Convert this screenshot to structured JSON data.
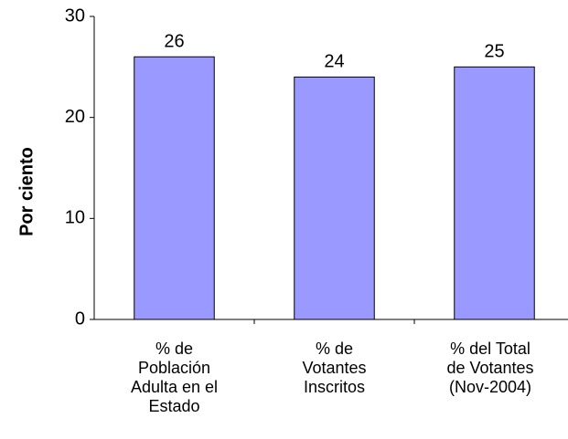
{
  "chart_data": {
    "type": "bar",
    "y_label": "Por ciento",
    "categories": [
      "% de\nPoblación\nAdulta en el\nEstado",
      "% de\nVotantes\nInscritos",
      "% del Total\nde Votantes\n(Nov-2004)"
    ],
    "values": [
      26,
      24,
      25
    ],
    "color": "#9999ff",
    "ylim": [
      0,
      30
    ],
    "yticks": [
      0,
      10,
      20,
      30
    ],
    "grid": false
  }
}
